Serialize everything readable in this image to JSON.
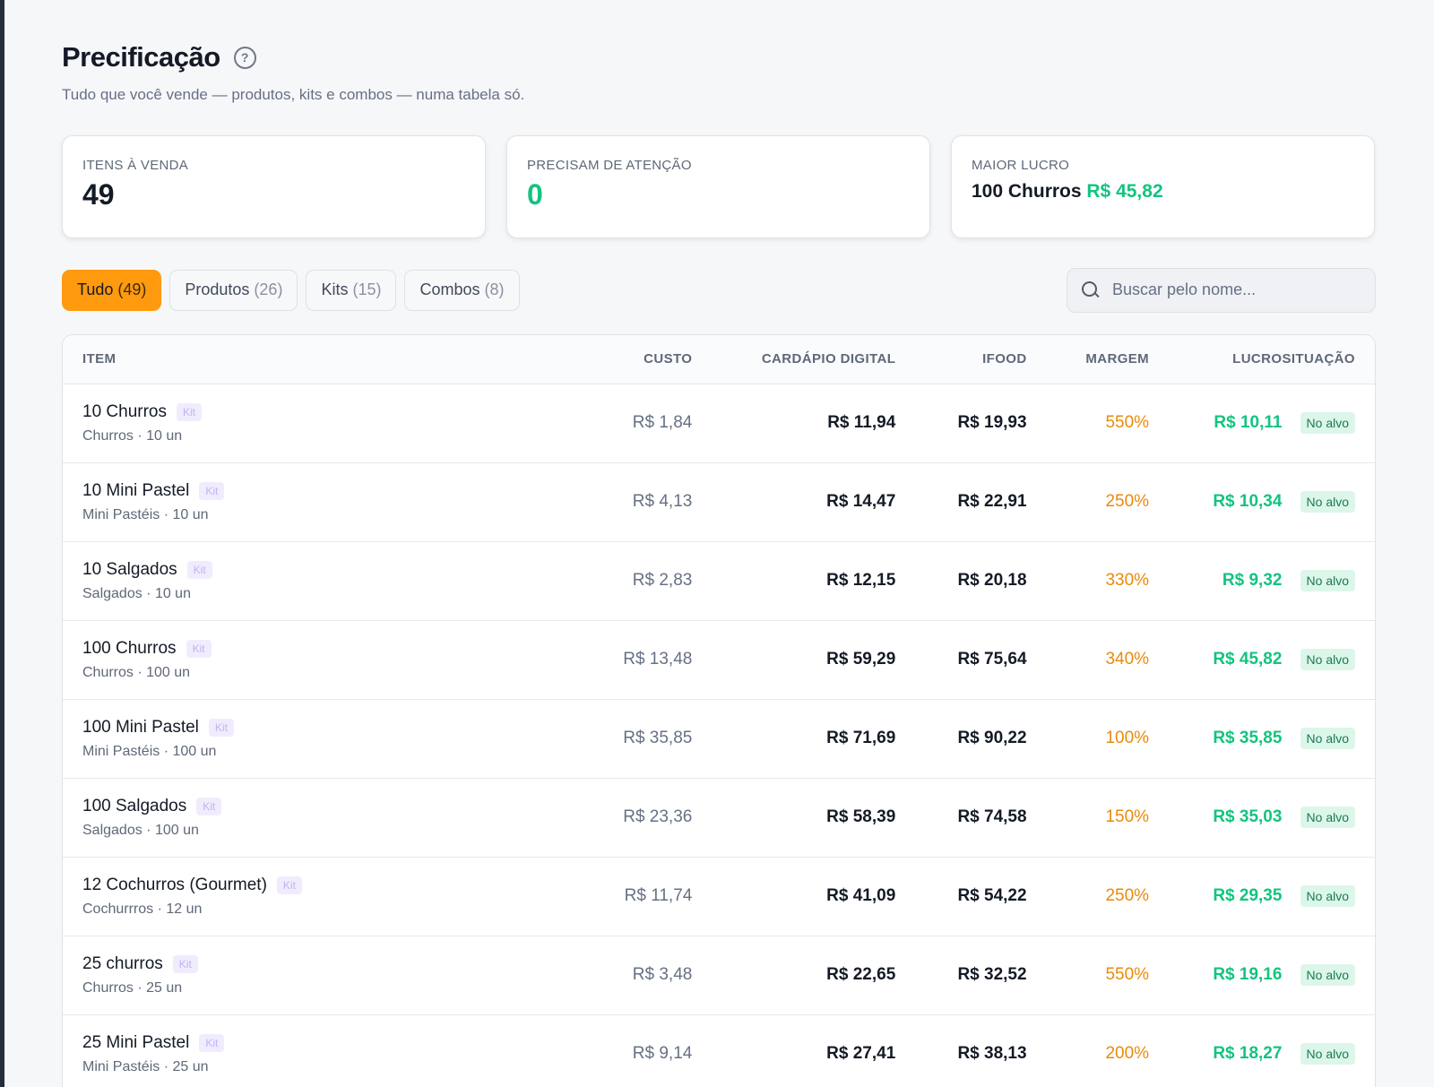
{
  "header": {
    "title": "Precificação",
    "help_icon": "?",
    "subtitle": "Tudo que você vende — produtos, kits e combos — numa tabela só."
  },
  "stats": {
    "items_for_sale": {
      "label": "ITENS À VENDA",
      "value": "49"
    },
    "need_attention": {
      "label": "PRECISAM DE ATENÇÃO",
      "value": "0"
    },
    "top_profit": {
      "label": "MAIOR LUCRO",
      "item": "100 Churros",
      "value": "R$ 45,82"
    }
  },
  "filters": [
    {
      "label": "Tudo",
      "count": "(49)",
      "active": true
    },
    {
      "label": "Produtos",
      "count": "(26)",
      "active": false
    },
    {
      "label": "Kits",
      "count": "(15)",
      "active": false
    },
    {
      "label": "Combos",
      "count": "(8)",
      "active": false
    }
  ],
  "search": {
    "placeholder": "Buscar pelo nome...",
    "value": ""
  },
  "table": {
    "columns": {
      "item": "ITEM",
      "cost": "CUSTO",
      "digital": "CARDÁPIO DIGITAL",
      "ifood": "IFOOD",
      "margin": "MARGEM",
      "profit": "LUCRO",
      "status": "SITUAÇÃO"
    },
    "rows": [
      {
        "name": "10 Churros",
        "badge": "Kit",
        "sub": "Churros · 10 un",
        "cost": "R$ 1,84",
        "digital": "R$ 11,94",
        "ifood": "R$ 19,93",
        "margin": "550%",
        "profit": "R$ 10,11",
        "status": "No alvo"
      },
      {
        "name": "10 Mini Pastel",
        "badge": "Kit",
        "sub": "Mini Pastéis · 10 un",
        "cost": "R$ 4,13",
        "digital": "R$ 14,47",
        "ifood": "R$ 22,91",
        "margin": "250%",
        "profit": "R$ 10,34",
        "status": "No alvo"
      },
      {
        "name": "10 Salgados",
        "badge": "Kit",
        "sub": "Salgados · 10 un",
        "cost": "R$ 2,83",
        "digital": "R$ 12,15",
        "ifood": "R$ 20,18",
        "margin": "330%",
        "profit": "R$ 9,32",
        "status": "No alvo"
      },
      {
        "name": "100 Churros",
        "badge": "Kit",
        "sub": "Churros · 100 un",
        "cost": "R$ 13,48",
        "digital": "R$ 59,29",
        "ifood": "R$ 75,64",
        "margin": "340%",
        "profit": "R$ 45,82",
        "status": "No alvo"
      },
      {
        "name": "100 Mini Pastel",
        "badge": "Kit",
        "sub": "Mini Pastéis · 100 un",
        "cost": "R$ 35,85",
        "digital": "R$ 71,69",
        "ifood": "R$ 90,22",
        "margin": "100%",
        "profit": "R$ 35,85",
        "status": "No alvo"
      },
      {
        "name": "100 Salgados",
        "badge": "Kit",
        "sub": "Salgados · 100 un",
        "cost": "R$ 23,36",
        "digital": "R$ 58,39",
        "ifood": "R$ 74,58",
        "margin": "150%",
        "profit": "R$ 35,03",
        "status": "No alvo"
      },
      {
        "name": "12 Cochurros (Gourmet)",
        "badge": "Kit",
        "sub": "Cochurrros · 12 un",
        "cost": "R$ 11,74",
        "digital": "R$ 41,09",
        "ifood": "R$ 54,22",
        "margin": "250%",
        "profit": "R$ 29,35",
        "status": "No alvo"
      },
      {
        "name": "25 churros",
        "badge": "Kit",
        "sub": "Churros · 25 un",
        "cost": "R$ 3,48",
        "digital": "R$ 22,65",
        "ifood": "R$ 32,52",
        "margin": "550%",
        "profit": "R$ 19,16",
        "status": "No alvo"
      },
      {
        "name": "25 Mini Pastel",
        "badge": "Kit",
        "sub": "Mini Pastéis · 25 un",
        "cost": "R$ 9,14",
        "digital": "R$ 27,41",
        "ifood": "R$ 38,13",
        "margin": "200%",
        "profit": "R$ 18,27",
        "status": "No alvo"
      }
    ]
  },
  "colors": {
    "accent": "#ff9a0e",
    "profit": "#12c47f",
    "margin": "#ea8a0a",
    "status_bg": "#dcf6ea",
    "kit_badge": "#c3b3f3"
  }
}
